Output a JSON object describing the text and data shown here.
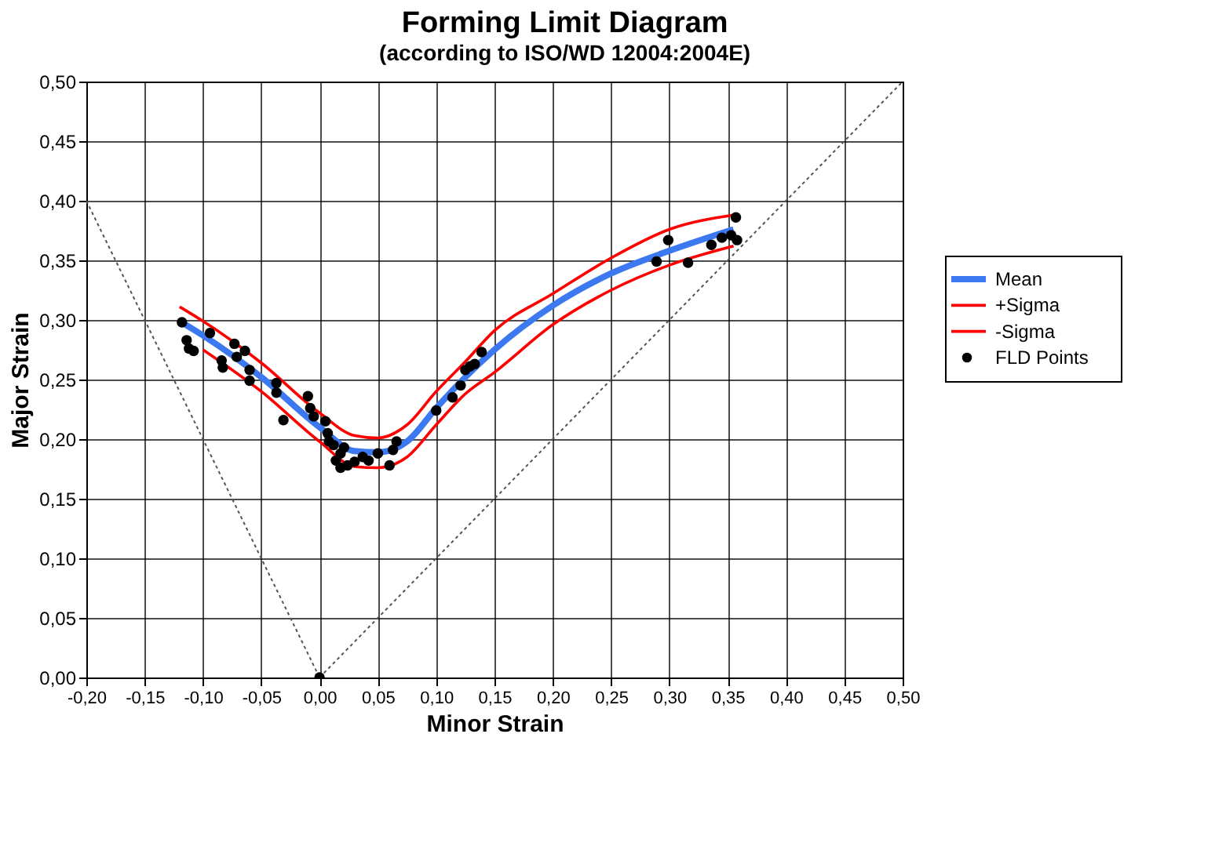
{
  "chart_data": {
    "type": "line",
    "title": "Forming Limit Diagram",
    "subtitle": "(according to ISO/WD 12004:2004E)",
    "xlabel": "Minor Strain",
    "ylabel": "Major Strain",
    "xlim": [
      -0.2,
      0.5
    ],
    "ylim": [
      0,
      0.5
    ],
    "xticks": [
      {
        "value": -0.2,
        "label": "-0,20"
      },
      {
        "value": -0.15,
        "label": "-0,15"
      },
      {
        "value": -0.1,
        "label": "-0,10"
      },
      {
        "value": -0.05,
        "label": "-0,05"
      },
      {
        "value": 0,
        "label": "0,00"
      },
      {
        "value": 0.05,
        "label": "0,05"
      },
      {
        "value": 0.1,
        "label": "0,10"
      },
      {
        "value": 0.15,
        "label": "0,15"
      },
      {
        "value": 0.2,
        "label": "0,20"
      },
      {
        "value": 0.25,
        "label": "0,25"
      },
      {
        "value": 0.3,
        "label": "0,30"
      },
      {
        "value": 0.35,
        "label": "0,35"
      },
      {
        "value": 0.4,
        "label": "0,40"
      },
      {
        "value": 0.45,
        "label": "0,45"
      },
      {
        "value": 0.5,
        "label": "0,50"
      }
    ],
    "yticks": [
      {
        "value": 0,
        "label": "0,00"
      },
      {
        "value": 0.05,
        "label": "0,05"
      },
      {
        "value": 0.1,
        "label": "0,10"
      },
      {
        "value": 0.15,
        "label": "0,15"
      },
      {
        "value": 0.2,
        "label": "0,20"
      },
      {
        "value": 0.25,
        "label": "0,25"
      },
      {
        "value": 0.3,
        "label": "0,30"
      },
      {
        "value": 0.35,
        "label": "0,35"
      },
      {
        "value": 0.4,
        "label": "0,40"
      },
      {
        "value": 0.45,
        "label": "0,45"
      },
      {
        "value": 0.5,
        "label": "0,50"
      }
    ],
    "grid": true,
    "legend": "right",
    "series": [
      {
        "name": "Mean",
        "color": "#3c78f0",
        "marker": "none",
        "line_style": "solid",
        "x": [
          -0.12,
          -0.1,
          -0.05,
          0,
          0.03,
          0.05,
          0.075,
          0.1,
          0.125,
          0.15,
          0.2,
          0.25,
          0.3,
          0.355
        ],
        "values": [
          0.299,
          0.287,
          0.252,
          0.21,
          0.19,
          0.189,
          0.198,
          0.226,
          0.252,
          0.275,
          0.312,
          0.339,
          0.358,
          0.376
        ]
      },
      {
        "name": "+Sigma",
        "color": "#ff0000",
        "marker": "none",
        "line_style": "solid",
        "x": [
          -0.12,
          -0.1,
          -0.05,
          0,
          0.03,
          0.05,
          0.075,
          0.1,
          0.125,
          0.15,
          0.2,
          0.25,
          0.3,
          0.355
        ],
        "values": [
          0.311,
          0.299,
          0.264,
          0.222,
          0.203,
          0.201,
          0.212,
          0.24,
          0.265,
          0.291,
          0.322,
          0.352,
          0.376,
          0.388
        ]
      },
      {
        "name": "-Sigma",
        "color": "#ff0000",
        "marker": "none",
        "line_style": "solid",
        "x": [
          -0.1,
          -0.05,
          0,
          0.03,
          0.05,
          0.075,
          0.1,
          0.125,
          0.15,
          0.2,
          0.25,
          0.3,
          0.355
        ],
        "values": [
          0.275,
          0.24,
          0.198,
          0.177,
          0.176,
          0.185,
          0.212,
          0.238,
          0.256,
          0.296,
          0.325,
          0.346,
          0.362
        ]
      },
      {
        "name": "FLD Points",
        "type": "scatter",
        "color": "#000000",
        "marker": "circle",
        "x": [
          -0.118,
          -0.114,
          -0.112,
          -0.108,
          -0.094,
          -0.084,
          -0.073,
          -0.071,
          -0.064,
          -0.083,
          -0.06,
          -0.06,
          -0.037,
          -0.037,
          -0.031,
          -0.01,
          -0.008,
          -0.005,
          0.005,
          0.007,
          0.012,
          0.014,
          0.018,
          0.024,
          0.018,
          0.03,
          0.037,
          0.042,
          0.05,
          0.06,
          0.063,
          0.066,
          0.008,
          0.021,
          0.1,
          0.114,
          0.121,
          0.125,
          0.129,
          0.133,
          0.139,
          0.289,
          0.299,
          0.316,
          0.336,
          0.345,
          0.353,
          0.357,
          0.358
        ],
        "values": [
          0.298,
          0.283,
          0.276,
          0.274,
          0.289,
          0.266,
          0.28,
          0.269,
          0.274,
          0.26,
          0.258,
          0.249,
          0.247,
          0.239,
          0.216,
          0.236,
          0.226,
          0.219,
          0.215,
          0.205,
          0.195,
          0.182,
          0.176,
          0.178,
          0.188,
          0.181,
          0.185,
          0.182,
          0.188,
          0.178,
          0.191,
          0.198,
          0.198,
          0.193,
          0.224,
          0.235,
          0.245,
          0.258,
          0.261,
          0.263,
          0.273,
          0.349,
          0.367,
          0.348,
          0.363,
          0.369,
          0.371,
          0.386,
          0.367
        ]
      },
      {
        "color": "#555555",
        "marker": "none",
        "line_style": "dotted",
        "x": [
          -0.2,
          0
        ],
        "values": [
          0.4,
          0
        ]
      },
      {
        "color": "#555555",
        "marker": "none",
        "line_style": "dotted",
        "x": [
          0,
          0.5
        ],
        "values": [
          0,
          0.5
        ]
      },
      {
        "type": "scatter",
        "color": "#000000",
        "marker": "circle",
        "x": [
          0
        ],
        "values": [
          0
        ]
      }
    ]
  }
}
